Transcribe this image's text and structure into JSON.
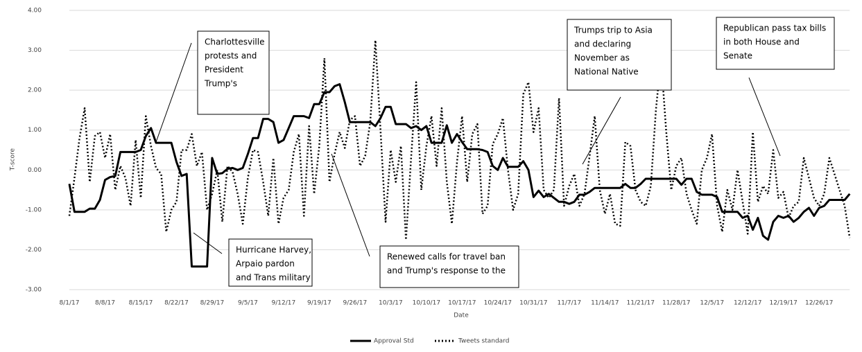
{
  "chart_data": {
    "type": "line",
    "x_label": "Date",
    "y_label": "T-score",
    "categories": [
      "8/1/17",
      null,
      null,
      null,
      null,
      null,
      null,
      "8/8/17",
      null,
      null,
      null,
      null,
      null,
      null,
      "8/15/17",
      null,
      null,
      null,
      null,
      null,
      null,
      "8/22/17",
      null,
      null,
      null,
      null,
      null,
      null,
      "8/29/17",
      null,
      null,
      null,
      null,
      null,
      null,
      "9/5/17",
      null,
      null,
      null,
      null,
      null,
      null,
      "9/12/17",
      null,
      null,
      null,
      null,
      null,
      null,
      "9/19/17",
      null,
      null,
      null,
      null,
      null,
      null,
      "9/26/17",
      null,
      null,
      null,
      null,
      null,
      null,
      "10/3/17",
      null,
      null,
      null,
      null,
      null,
      null,
      "10/10/17",
      null,
      null,
      null,
      null,
      null,
      null,
      "10/17/17",
      null,
      null,
      null,
      null,
      null,
      null,
      "10/24/17",
      null,
      null,
      null,
      null,
      null,
      null,
      "10/31/17",
      null,
      null,
      null,
      null,
      null,
      null,
      "11/7/17",
      null,
      null,
      null,
      null,
      null,
      null,
      "11/14/17",
      null,
      null,
      null,
      null,
      null,
      null,
      "11/21/17",
      null,
      null,
      null,
      null,
      null,
      null,
      "11/28/17",
      null,
      null,
      null,
      null,
      null,
      null,
      "12/5/17",
      null,
      null,
      null,
      null,
      null,
      null,
      "12/12/17",
      null,
      null,
      null,
      null,
      null,
      null,
      "12/19/17",
      null,
      null,
      null,
      null,
      null,
      null,
      "12/26/17",
      null,
      null,
      null,
      null,
      null,
      null
    ],
    "series": [
      {
        "name": "Approval Std",
        "color": "#000000",
        "dash": "solid",
        "values": [
          -0.35,
          -1.05,
          -1.05,
          -1.05,
          -0.97,
          -0.97,
          -0.75,
          -0.25,
          -0.18,
          -0.15,
          0.45,
          0.45,
          0.45,
          0.45,
          0.5,
          0.85,
          1.05,
          0.68,
          0.68,
          0.68,
          0.68,
          0.2,
          -0.15,
          -0.1,
          -2.42,
          -2.42,
          -2.42,
          -2.42,
          0.3,
          -0.1,
          -0.08,
          0.03,
          0.05,
          0.0,
          0.05,
          0.4,
          0.8,
          0.8,
          1.28,
          1.28,
          1.2,
          0.68,
          0.75,
          1.05,
          1.35,
          1.35,
          1.35,
          1.3,
          1.65,
          1.65,
          1.95,
          1.95,
          2.1,
          2.15,
          1.7,
          1.2,
          1.2,
          1.2,
          1.2,
          1.2,
          1.1,
          1.3,
          1.58,
          1.58,
          1.15,
          1.15,
          1.15,
          1.05,
          1.1,
          1.0,
          1.1,
          0.68,
          0.68,
          0.68,
          1.12,
          0.68,
          0.9,
          0.7,
          0.52,
          0.52,
          0.52,
          0.5,
          0.45,
          0.1,
          0.0,
          0.3,
          0.08,
          0.08,
          0.08,
          0.22,
          0.0,
          -0.68,
          -0.52,
          -0.68,
          -0.6,
          -0.7,
          -0.8,
          -0.8,
          -0.85,
          -0.8,
          -0.62,
          -0.62,
          -0.55,
          -0.45,
          -0.45,
          -0.45,
          -0.45,
          -0.45,
          -0.45,
          -0.35,
          -0.45,
          -0.45,
          -0.35,
          -0.22,
          -0.22,
          -0.22,
          -0.22,
          -0.22,
          -0.22,
          -0.22,
          -0.37,
          -0.22,
          -0.22,
          -0.55,
          -0.62,
          -0.62,
          -0.62,
          -0.68,
          -1.05,
          -1.05,
          -1.05,
          -1.05,
          -1.2,
          -1.15,
          -1.5,
          -1.2,
          -1.65,
          -1.75,
          -1.3,
          -1.15,
          -1.2,
          -1.15,
          -1.3,
          -1.2,
          -1.05,
          -0.95,
          -1.15,
          -0.95,
          -0.9,
          -0.75,
          -0.75,
          -0.75,
          -0.75,
          -0.6
        ]
      },
      {
        "name": "Tweets standard",
        "color": "#000000",
        "dash": "dotted",
        "values": [
          -1.15,
          -0.2,
          0.8,
          1.55,
          -0.3,
          0.85,
          0.95,
          0.3,
          0.9,
          -0.5,
          0.1,
          -0.2,
          -0.9,
          0.75,
          -0.7,
          1.35,
          0.6,
          0.05,
          -0.1,
          -1.55,
          -1.0,
          -0.8,
          0.5,
          0.5,
          0.9,
          0.1,
          0.45,
          -1.0,
          -0.6,
          0.0,
          -1.3,
          0.1,
          -0.05,
          -0.6,
          -1.35,
          -0.2,
          0.5,
          0.45,
          -0.3,
          -1.15,
          0.3,
          -1.35,
          -0.7,
          -0.5,
          0.45,
          0.9,
          -1.15,
          1.1,
          -0.6,
          0.6,
          2.8,
          -0.3,
          0.4,
          0.95,
          0.55,
          1.25,
          1.35,
          0.1,
          0.35,
          1.2,
          3.25,
          1.0,
          -1.3,
          0.5,
          -0.3,
          0.6,
          -1.75,
          0.3,
          2.2,
          -0.5,
          0.6,
          1.35,
          0.1,
          1.55,
          -0.3,
          -1.35,
          0.2,
          1.35,
          -0.3,
          0.9,
          1.15,
          -1.1,
          -0.9,
          0.65,
          0.9,
          1.3,
          0.0,
          -1.0,
          -0.6,
          1.9,
          2.2,
          0.95,
          1.55,
          -0.5,
          -0.7,
          -0.5,
          1.8,
          -0.9,
          -0.4,
          -0.1,
          -0.9,
          -0.6,
          0.35,
          1.35,
          -0.5,
          -1.1,
          -0.6,
          -1.35,
          -1.4,
          0.7,
          0.6,
          -0.5,
          -0.8,
          -0.9,
          -0.4,
          1.5,
          2.8,
          1.0,
          -0.5,
          0.1,
          0.3,
          -0.6,
          -1.0,
          -1.35,
          0.0,
          0.3,
          0.9,
          -0.9,
          -1.55,
          -0.5,
          -1.0,
          0.0,
          -0.8,
          -1.6,
          0.95,
          -0.8,
          -0.4,
          -0.6,
          0.5,
          -0.7,
          -0.55,
          -1.2,
          -0.9,
          -0.8,
          0.3,
          -0.2,
          -0.7,
          -0.9,
          -0.6,
          0.3,
          -0.1,
          -0.5,
          -0.9,
          -1.7
        ]
      }
    ],
    "ylim": [
      -3,
      4
    ],
    "yticks": [
      {
        "value": -3,
        "label": "-3.00"
      },
      {
        "value": -2,
        "label": "-2.00"
      },
      {
        "value": -1,
        "label": "-1.00"
      },
      {
        "value": 0,
        "label": "0.00"
      },
      {
        "value": 1,
        "label": "1.00"
      },
      {
        "value": 2,
        "label": "2.00"
      },
      {
        "value": 3,
        "label": "3.00"
      },
      {
        "value": 4,
        "label": "4.00"
      }
    ],
    "grid": true,
    "legend": "bottom",
    "annotations": [
      {
        "lines": [
          "Charlottesville",
          "protests and",
          "President",
          "Trump's"
        ]
      },
      {
        "lines": [
          "Hurricane Harvey,",
          "Arpaio pardon",
          "and Trans military"
        ]
      },
      {
        "lines": [
          "Renewed calls for travel ban",
          "and Trump's response to the"
        ]
      },
      {
        "lines": [
          "Trumps trip to Asia",
          "and declaring",
          "November as",
          "National Native"
        ]
      },
      {
        "lines": [
          "Republican pass tax bills",
          "in both House and",
          "Senate"
        ]
      }
    ]
  }
}
